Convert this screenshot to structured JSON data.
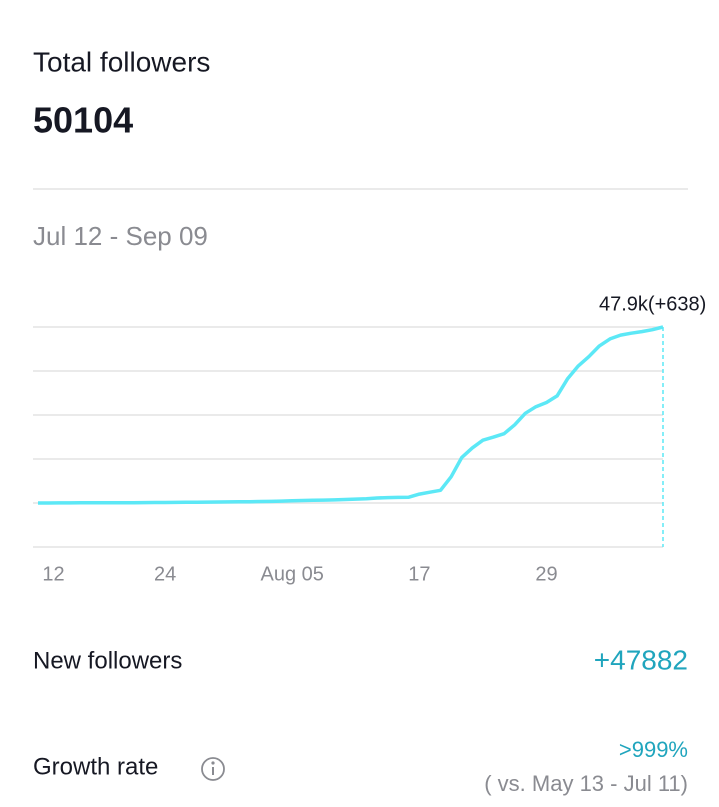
{
  "header": {
    "title": "Total followers",
    "total": "50104"
  },
  "date_range": "Jul 12 - Sep 09",
  "chart_data": {
    "type": "line",
    "categories": [
      "Jul 12",
      null,
      null,
      null,
      null,
      null,
      null,
      null,
      null,
      null,
      null,
      null,
      "24",
      null,
      null,
      null,
      null,
      null,
      null,
      null,
      null,
      null,
      null,
      null,
      "Aug 05",
      null,
      null,
      null,
      null,
      null,
      null,
      null,
      null,
      null,
      null,
      null,
      "17",
      null,
      null,
      null,
      null,
      null,
      null,
      null,
      null,
      null,
      null,
      null,
      "29",
      null,
      null,
      null,
      null,
      null,
      null,
      null,
      null,
      null,
      null,
      null
    ],
    "series": [
      {
        "color": "#5ce8f6",
        "values": [
          2200,
          2210,
          2220,
          2230,
          2240,
          2250,
          2260,
          2270,
          2280,
          2290,
          2300,
          2320,
          2340,
          2360,
          2380,
          2400,
          2430,
          2460,
          2490,
          2520,
          2550,
          2580,
          2620,
          2700,
          2800,
          2850,
          2900,
          2950,
          3000,
          3100,
          3200,
          3300,
          3500,
          3600,
          3650,
          3700,
          4500,
          5000,
          5500,
          9000,
          14000,
          16500,
          18500,
          19300,
          20200,
          22500,
          25500,
          27200,
          28300,
          30000,
          34500,
          37800,
          40200,
          43000,
          44800,
          45800,
          46300,
          46700,
          47200,
          47900
        ]
      }
    ],
    "annotation": "47.9k(+638)",
    "ylim": [
      -9225,
      47900
    ],
    "yticks": [
      -9225,
      2200,
      13625,
      25050,
      36475,
      47900
    ],
    "grid": true
  },
  "stats": [
    {
      "label": "New followers",
      "value": "+47882"
    },
    {
      "label": "Growth rate",
      "value": ">999%",
      "note": "( vs. May 13 - Jul 11)"
    }
  ]
}
